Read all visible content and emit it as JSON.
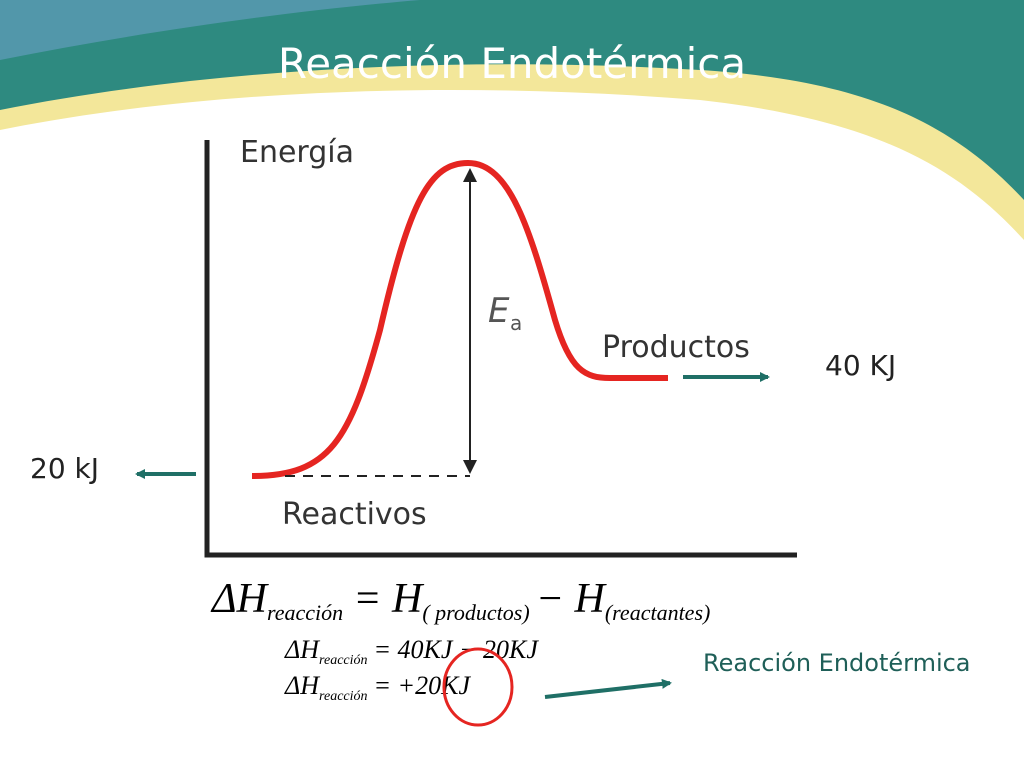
{
  "header": {
    "title": "Reacción Endotérmica"
  },
  "diagram": {
    "y_axis_label": "Energía",
    "activation_symbol": "E",
    "activation_subscript": "a",
    "products_label": "Productos",
    "reactants_label": "Reactivos",
    "products_energy": "40 KJ",
    "reactants_energy": "20 kJ"
  },
  "equations": [
    {
      "lhs": "ΔH",
      "lhs_sub": "reacción",
      "rhs": "= H",
      "rhs_sub": "( productos)",
      "rhs2": "− H",
      "rhs2_sub": "(reactantes)"
    },
    {
      "lhs": "ΔH",
      "lhs_sub": "reacción",
      "rhs": "= 40KJ − 20KJ"
    },
    {
      "lhs": "ΔH",
      "lhs_sub": "reacción",
      "rhs": "= +20KJ"
    }
  ],
  "note": "Reacción Endotérmica"
}
